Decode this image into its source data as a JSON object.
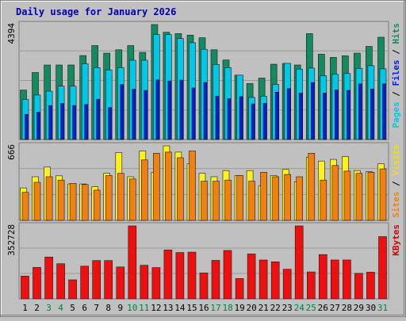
{
  "chart_data": {
    "type": "bar",
    "title": "Daily usage for January 2026",
    "categories": [
      "1",
      "2",
      "3",
      "4",
      "5",
      "6",
      "7",
      "8",
      "9",
      "10",
      "11",
      "12",
      "13",
      "14",
      "15",
      "16",
      "17",
      "18",
      "19",
      "20",
      "21",
      "22",
      "23",
      "24",
      "25",
      "26",
      "27",
      "28",
      "29",
      "30",
      "31"
    ],
    "weekend_days": [
      "3",
      "4",
      "10",
      "11",
      "17",
      "18",
      "24",
      "25",
      "31"
    ],
    "panels": [
      {
        "id": "requests",
        "max_label": "4394",
        "ymax": 4394,
        "axis_label_parts": [
          {
            "text": "Pages",
            "color": "#00c8e8"
          },
          {
            "text": " / ",
            "color": "#000000"
          },
          {
            "text": "Files",
            "color": "#0020e0"
          },
          {
            "text": " / ",
            "color": "#000000"
          },
          {
            "text": "Hits",
            "color": "#138a60"
          }
        ],
        "series": [
          {
            "name": "Hits",
            "color": "#138a60",
            "values": [
              1890,
              2560,
              2850,
              2850,
              2850,
              3210,
              3590,
              3300,
              3430,
              3590,
              3330,
              4394,
              4100,
              4050,
              3990,
              3890,
              3430,
              3040,
              2460,
              2140,
              2350,
              2880,
              2910,
              2850,
              4050,
              3260,
              3140,
              3200,
              3300,
              3560,
              3910
            ]
          },
          {
            "name": "Files",
            "color": "#00c8e8",
            "values": [
              1530,
              1700,
              1850,
              2040,
              2040,
              2900,
              2750,
              2660,
              2750,
              3030,
              3030,
              4010,
              4010,
              3860,
              3700,
              3450,
              2870,
              2750,
              2460,
              1610,
              1650,
              2110,
              2910,
              2690,
              2730,
              2440,
              2490,
              2520,
              2720,
              2820,
              2700
            ]
          },
          {
            "name": "Pages",
            "color": "#0020e0",
            "values": [
              960,
              1050,
              1300,
              1380,
              1300,
              1340,
              1540,
              1220,
              2100,
              1920,
              1880,
              2280,
              2240,
              2270,
              1970,
              2180,
              1660,
              1560,
              1640,
              1360,
              1380,
              1810,
              1950,
              1780,
              2180,
              1780,
              1900,
              1880,
              2130,
              1930,
              2130
            ]
          }
        ]
      },
      {
        "id": "visits",
        "max_label": "666",
        "ymax": 666,
        "axis_label_parts": [
          {
            "text": "Sites",
            "color": "#f08010"
          },
          {
            "text": " / ",
            "color": "#000000"
          },
          {
            "text": "Visits",
            "color": "#f0e000"
          }
        ],
        "series": [
          {
            "name": "Visits",
            "color": "#fff020",
            "values": [
              290,
              390,
              476,
              398,
              325,
              325,
              300,
              420,
              606,
              390,
              620,
              430,
              666,
              610,
              505,
              420,
              390,
              445,
              400,
              445,
              310,
              400,
              455,
              345,
              565,
              530,
              545,
              570,
              445,
              435,
              505
            ]
          },
          {
            "name": "Sites",
            "color": "#f08010",
            "values": [
              250,
              340,
              390,
              360,
              330,
              320,
              270,
              400,
              420,
              370,
              540,
              600,
              610,
              560,
              620,
              350,
              350,
              360,
              400,
              350,
              430,
              390,
              410,
              390,
              600,
              360,
              490,
              440,
              420,
              430,
              460
            ]
          }
        ]
      },
      {
        "id": "volume",
        "max_label": "352728",
        "ymax": 352728,
        "axis_label_parts": [
          {
            "text": "KBytes",
            "color": "#d00000"
          }
        ],
        "series": [
          {
            "name": "KBytes",
            "color": "#ee1010",
            "values": [
              110000,
              152000,
              202000,
              170000,
              92000,
              158000,
              185000,
              185000,
              154000,
              352728,
              162000,
              151000,
              236000,
              224000,
              226000,
              125000,
              186000,
              234000,
              98000,
              217000,
              188000,
              179000,
              143000,
              352728,
              130000,
              214000,
              188000,
              188000,
              123000,
              129000,
              301000
            ]
          }
        ]
      }
    ],
    "colors": {
      "title": "#0000a8",
      "weekday_label": "#000000",
      "weekend_label": "#00804c",
      "plot_background": "#c0c0c0",
      "panel_border": "#7a7a7a"
    }
  }
}
